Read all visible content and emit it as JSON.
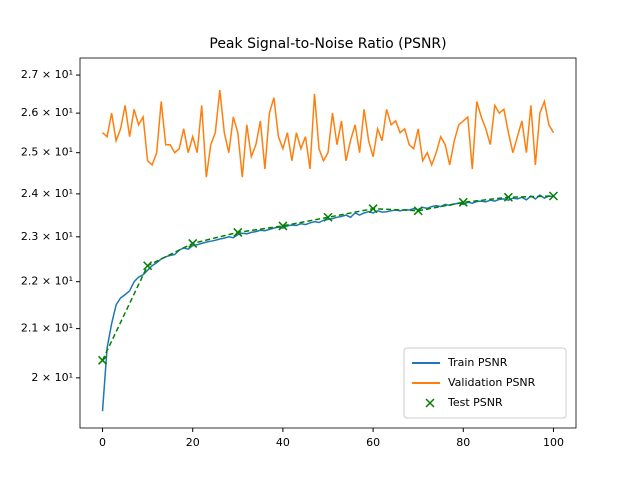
{
  "chart_data": {
    "type": "line",
    "title": "Peak Signal-to-Noise Ratio (PSNR)",
    "x": [
      0,
      1,
      2,
      3,
      4,
      5,
      6,
      7,
      8,
      9,
      10,
      11,
      12,
      13,
      14,
      15,
      16,
      17,
      18,
      19,
      20,
      21,
      22,
      23,
      24,
      25,
      26,
      27,
      28,
      29,
      30,
      31,
      32,
      33,
      34,
      35,
      36,
      37,
      38,
      39,
      40,
      41,
      42,
      43,
      44,
      45,
      46,
      47,
      48,
      49,
      50,
      51,
      52,
      53,
      54,
      55,
      56,
      57,
      58,
      59,
      60,
      61,
      62,
      63,
      64,
      65,
      66,
      67,
      68,
      69,
      70,
      71,
      72,
      73,
      74,
      75,
      76,
      77,
      78,
      79,
      80,
      81,
      82,
      83,
      84,
      85,
      86,
      87,
      88,
      89,
      90,
      91,
      92,
      93,
      94,
      95,
      96,
      97,
      98,
      99,
      100
    ],
    "series": [
      {
        "name": "Train PSNR",
        "color": "#1f77b4",
        "values": [
          19.35,
          20.6,
          21.1,
          21.5,
          21.65,
          21.72,
          21.8,
          22.0,
          22.1,
          22.15,
          22.25,
          22.35,
          22.42,
          22.5,
          22.55,
          22.58,
          22.6,
          22.7,
          22.75,
          22.72,
          22.8,
          22.82,
          22.85,
          22.88,
          22.9,
          22.92,
          22.95,
          22.97,
          23.0,
          22.98,
          23.05,
          23.08,
          23.07,
          23.1,
          23.12,
          23.15,
          23.14,
          23.17,
          23.2,
          23.22,
          23.2,
          23.25,
          23.27,
          23.26,
          23.3,
          23.28,
          23.32,
          23.35,
          23.33,
          23.38,
          23.4,
          23.42,
          23.45,
          23.47,
          23.5,
          23.45,
          23.55,
          23.5,
          23.55,
          23.58,
          23.55,
          23.6,
          23.57,
          23.58,
          23.6,
          23.62,
          23.6,
          23.63,
          23.62,
          23.65,
          23.63,
          23.68,
          23.66,
          23.7,
          23.72,
          23.7,
          23.75,
          23.73,
          23.76,
          23.78,
          23.75,
          23.8,
          23.78,
          23.82,
          23.83,
          23.81,
          23.85,
          23.83,
          23.87,
          23.88,
          23.85,
          23.9,
          23.88,
          23.92,
          23.86,
          23.95,
          23.88,
          23.97,
          23.9,
          23.95,
          23.93
        ]
      },
      {
        "name": "Validation PSNR",
        "color": "#ff7f0e",
        "values": [
          25.5,
          25.4,
          26.0,
          25.3,
          25.6,
          26.2,
          25.4,
          26.1,
          25.7,
          25.9,
          24.8,
          24.7,
          25.0,
          26.3,
          25.2,
          25.2,
          25.0,
          25.1,
          25.6,
          25.0,
          25.4,
          25.0,
          26.2,
          24.4,
          25.2,
          25.5,
          26.6,
          25.5,
          25.0,
          25.9,
          25.5,
          24.4,
          25.7,
          24.9,
          25.2,
          25.8,
          24.6,
          26.0,
          26.4,
          25.4,
          25.1,
          25.5,
          24.8,
          25.5,
          25.1,
          25.4,
          24.6,
          26.5,
          25.1,
          24.8,
          25.0,
          26.0,
          25.2,
          25.8,
          24.8,
          25.3,
          25.7,
          25.0,
          26.1,
          25.3,
          24.9,
          25.6,
          25.3,
          26.1,
          25.7,
          25.8,
          25.5,
          25.6,
          25.2,
          25.1,
          25.6,
          24.8,
          25.0,
          24.7,
          25.0,
          25.4,
          25.2,
          24.7,
          25.3,
          25.7,
          25.8,
          25.9,
          24.6,
          26.3,
          25.9,
          25.6,
          25.2,
          26.2,
          26.0,
          26.1,
          25.5,
          25.0,
          25.4,
          25.8,
          25.0,
          26.2,
          24.7,
          26.0,
          26.3,
          25.7,
          25.5
        ]
      },
      {
        "name": "Test PSNR",
        "color": "#008000",
        "marker": "x",
        "linestyle": "dashed",
        "x": [
          0,
          10,
          20,
          30,
          40,
          50,
          60,
          70,
          80,
          90,
          100
        ],
        "values": [
          20.35,
          22.35,
          22.85,
          23.1,
          23.25,
          23.45,
          23.65,
          23.6,
          23.8,
          23.92,
          23.95
        ]
      }
    ],
    "xlim": [
      -5,
      105
    ],
    "xticks": [
      0,
      20,
      40,
      60,
      80,
      100
    ],
    "yscale": "log",
    "ylim": [
      19.03,
      27.46
    ],
    "yticks": [
      {
        "value": 20,
        "label": "2 × 10¹"
      },
      {
        "value": 21,
        "label": "2.1 × 10¹"
      },
      {
        "value": 22,
        "label": "2.2 × 10¹"
      },
      {
        "value": 23,
        "label": "2.3 × 10¹"
      },
      {
        "value": 24,
        "label": "2.4 × 10¹"
      },
      {
        "value": 25,
        "label": "2.5 × 10¹"
      },
      {
        "value": 26,
        "label": "2.6 × 10¹"
      },
      {
        "value": 27,
        "label": "2.7 × 10¹"
      }
    ],
    "legend": "lower right"
  }
}
